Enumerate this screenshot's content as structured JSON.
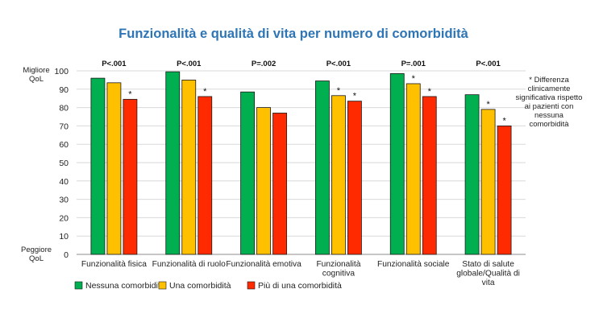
{
  "chart_data": {
    "type": "bar",
    "title": "Funzionalità e qualità di vita per numero di comorbidità",
    "y_top_label": [
      "Migliore",
      "QoL"
    ],
    "y_bottom_label": [
      "Peggiore",
      "QoL"
    ],
    "ylim": [
      0,
      100
    ],
    "yticks": [
      0,
      10,
      20,
      30,
      40,
      50,
      60,
      70,
      80,
      90,
      100
    ],
    "grid": true,
    "legend_position": "bottom-left",
    "categories": [
      [
        "Funzionalità fisica"
      ],
      [
        "Funzionalità di ruolo"
      ],
      [
        "Funzionalità emotiva"
      ],
      [
        "Funzionalità",
        "cognitiva"
      ],
      [
        "Funzionalità sociale"
      ],
      [
        "Stato di salute",
        "globale/Qualità di",
        "vita"
      ]
    ],
    "p_values": [
      "P<.001",
      "P<.001",
      "P=.002",
      "P<.001",
      "P=.001",
      "P<.001"
    ],
    "series": [
      {
        "name": "Nessuna comorbidità",
        "color": "#00b050",
        "values": [
          96,
          99.5,
          88.5,
          94.5,
          98.5,
          87
        ],
        "significant": [
          false,
          false,
          false,
          false,
          false,
          false
        ]
      },
      {
        "name": "Una comorbidità",
        "color": "#ffc000",
        "values": [
          93.5,
          95,
          80,
          86.5,
          93,
          79
        ],
        "significant": [
          false,
          false,
          false,
          true,
          true,
          true
        ]
      },
      {
        "name": "Più di una comorbidità",
        "color": "#ff2a00",
        "values": [
          84.5,
          86,
          77,
          83.5,
          86,
          70
        ],
        "significant": [
          true,
          true,
          false,
          true,
          true,
          true
        ]
      }
    ],
    "significance_marker": "*",
    "note": [
      "* Differenza",
      "clinicamente",
      "significativa rispetto",
      "ai pazienti con",
      "nessuna",
      "comorbidità"
    ]
  }
}
